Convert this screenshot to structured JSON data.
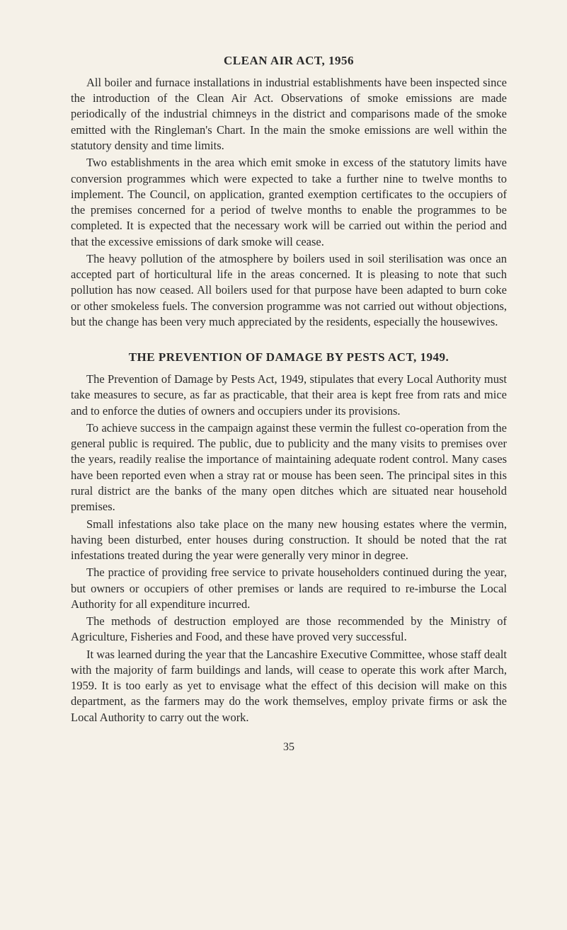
{
  "section1": {
    "title": "CLEAN AIR ACT, 1956",
    "paragraphs": [
      "All boiler and furnace installations in industrial establishments have been inspected since the introduction of the Clean Air Act. Obser­vations of smoke emissions are made periodically of the industrial chimneys in the district and comparisons made of the smoke emitted with the Ringleman's Chart. In the main the smoke emissions are well within the statutory density and time limits.",
      "Two establishments in the area which emit smoke in excess of the statutory limits have conversion programmes which were expected to take a further nine to twelve months to implement. The Council, on application, granted exemption certificates to the occupiers of the premises concerned for a period of twelve months to enable the pro­grammes to be completed. It is expected that the necessary work will be carried out within the period and that the excessive emissions of dark smoke will cease.",
      "The heavy pollution of the atmosphere by boilers used in soil sterili­sation was once an accepted part of horticultural life in the areas con­cerned. It is pleasing to note that such pollution has now ceased. All boilers used for that purpose have been adapted to burn coke or other smokeless fuels. The conversion programme was not carried out without objections, but the change has been very much appreciated by the residents, especially the housewives."
    ]
  },
  "section2": {
    "title": "THE PREVENTION OF DAMAGE BY PESTS ACT, 1949.",
    "paragraphs": [
      "The Prevention of Damage by Pests Act, 1949, stipulates that every Local Authority must take measures to secure, as far as practicable, that their area is kept free from rats and mice and to enforce the duties of owners and occupiers under its provisions.",
      "To achieve success in the campaign against these vermin the fullest co-operation from the general public is required. The public, due to publicity and the many visits to premises over the years, readily realise the importance of maintaining adequate rodent control. Many cases have been reported even when a stray rat or mouse has been seen. The principal sites in this rural district are the banks of the many open ditches which are situated near household premises.",
      "Small infestations also take place on the many new housing estates where the vermin, having been disturbed, enter houses during con­struction. It should be noted that the rat infestations treated during the year were generally very minor in degree.",
      "The practice of providing free service to private householders con­tinued during the year, but owners or occupiers of other premises or lands are required to re-imburse the Local Authority for all expenditure incurred.",
      "The methods of destruction employed are those recommended by the Ministry of Agriculture, Fisheries and Food, and these have proved very successful.",
      "It was learned during the year that the Lancashire Executive Com­mittee, whose staff dealt with the majority of farm buildings and lands, will cease to operate this work after March, 1959. It is too early as yet to envisage what the effect of this decision will make on this depart­ment, as the farmers may do the work themselves, employ private firms or ask the Local Authority to carry out the work."
    ]
  },
  "pageNumber": "35",
  "styling": {
    "backgroundColor": "#f5f1e8",
    "textColor": "#2a2a2a",
    "fontFamily": "Times New Roman",
    "bodyFontSize": 16.5,
    "titleFontSize": 17,
    "lineHeight": 1.35,
    "textIndent": 22,
    "pageWidth": 801,
    "pageHeight": 1314
  }
}
